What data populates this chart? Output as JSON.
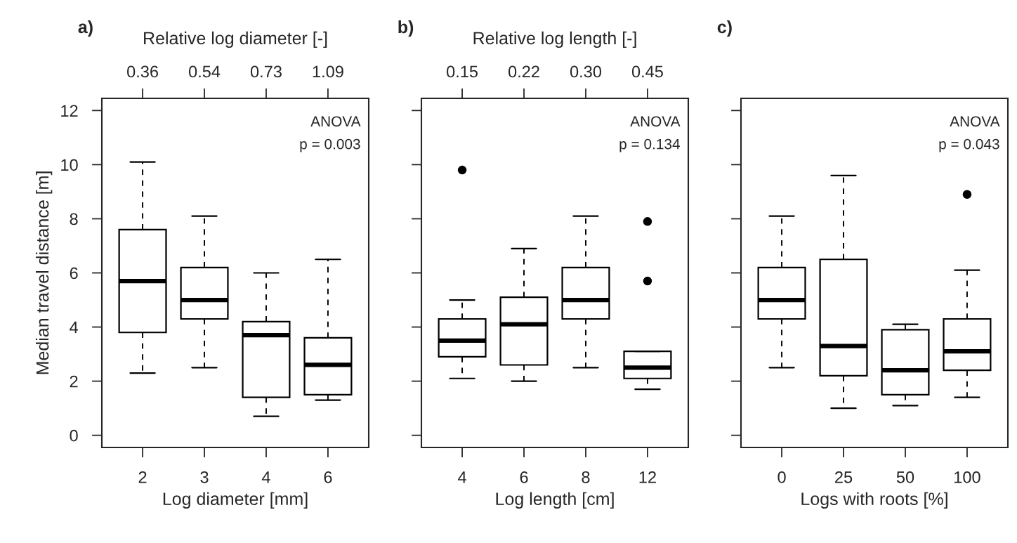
{
  "chart_data": [
    {
      "type": "box",
      "title": "a)",
      "xlabel": "Log diameter [mm]",
      "ylabel": "Median travel distance [m]",
      "x2label": "Relative log diameter [-]",
      "categories": [
        "2",
        "3",
        "4",
        "6"
      ],
      "ylim": [
        -0.45,
        12.45
      ],
      "yticks": [
        0,
        2,
        4,
        6,
        8,
        10,
        12
      ],
      "annotations": [
        "ANOVA",
        "p = 0.003",
        {
          "text": "0.36",
          "x": "2"
        },
        {
          "text": "0.54",
          "x": "3"
        },
        {
          "text": "0.73",
          "x": "4"
        },
        {
          "text": "1.09",
          "x": "6"
        }
      ],
      "boxes": [
        {
          "low": 2.3,
          "q1": 3.8,
          "median": 5.7,
          "q3": 7.6,
          "high": 10.1
        },
        {
          "low": 2.5,
          "q1": 4.3,
          "median": 5.0,
          "q3": 6.2,
          "high": 8.1
        },
        {
          "low": 0.7,
          "q1": 1.4,
          "median": 3.7,
          "q3": 4.2,
          "high": 6.0
        },
        {
          "low": 1.3,
          "q1": 1.5,
          "median": 2.6,
          "q3": 3.6,
          "high": 6.5
        }
      ]
    },
    {
      "type": "box",
      "title": "b)",
      "xlabel": "Log length [cm]",
      "x2label": "Relative log length [-]",
      "categories": [
        "4",
        "6",
        "8",
        "12"
      ],
      "ylim": [
        -0.45,
        12.45
      ],
      "yticks": [
        0,
        2,
        4,
        6,
        8,
        10,
        12
      ],
      "tick_labels": "x",
      "annotations": [
        "ANOVA",
        "p = 0.134",
        {
          "text": "0.15",
          "x": "4"
        },
        {
          "text": "0.22",
          "x": "6"
        },
        {
          "text": "0.30",
          "x": "8"
        },
        {
          "text": "0.45",
          "x": "12"
        }
      ],
      "boxes": [
        {
          "low": 2.1,
          "q1": 2.9,
          "median": 3.5,
          "q3": 4.3,
          "high": 5.0,
          "outliers": [
            9.8
          ]
        },
        {
          "low": 2.0,
          "q1": 2.6,
          "median": 4.1,
          "q3": 5.1,
          "high": 6.9
        },
        {
          "low": 2.5,
          "q1": 4.3,
          "median": 5.0,
          "q3": 6.2,
          "high": 8.1
        },
        {
          "low": 1.7,
          "q1": 2.1,
          "median": 2.5,
          "q3": 3.1,
          "high": 3.1,
          "outliers": [
            7.9,
            5.7
          ]
        }
      ]
    },
    {
      "type": "box",
      "title": "c)",
      "xlabel": "Logs with roots [%]",
      "categories": [
        "0",
        "25",
        "50",
        "100"
      ],
      "ylim": [
        -0.45,
        12.45
      ],
      "yticks": [
        0,
        2,
        4,
        6,
        8,
        10,
        12
      ],
      "tick_labels": "x",
      "annotations": [
        "ANOVA",
        "p = 0.043"
      ],
      "boxes": [
        {
          "low": 2.5,
          "q1": 4.3,
          "median": 5.0,
          "q3": 6.2,
          "high": 8.1
        },
        {
          "low": 1.0,
          "q1": 2.2,
          "median": 3.3,
          "q3": 6.5,
          "high": 9.6
        },
        {
          "low": 1.1,
          "q1": 1.5,
          "median": 2.4,
          "q3": 3.9,
          "high": 4.1
        },
        {
          "low": 1.4,
          "q1": 2.4,
          "median": 3.1,
          "q3": 4.3,
          "high": 6.1,
          "outliers": [
            8.9
          ]
        }
      ]
    }
  ]
}
